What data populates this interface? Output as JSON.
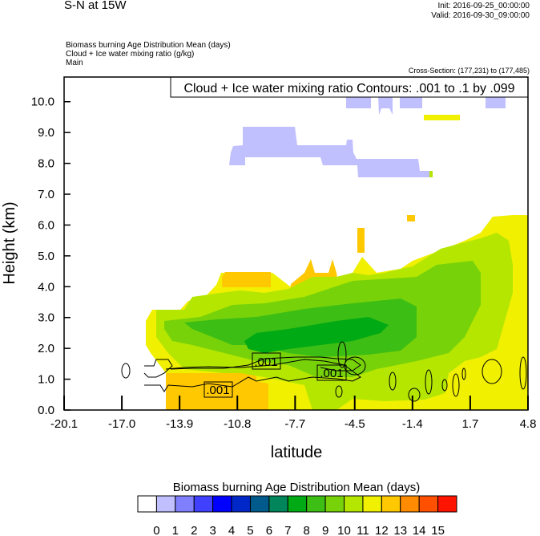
{
  "header": {
    "title": "S-N at 15W",
    "init": "Init: 2016-09-25_00:00:00",
    "valid": "Valid: 2016-09-30_09:00:00",
    "field_lines": [
      "Biomass burning Age Distribution Mean   (days)",
      "Cloud + Ice water mixing ratio   (g/kg)",
      "Main"
    ],
    "cross_section": "Cross-Section: (177,231) to (177,485)"
  },
  "chart_data": {
    "type": "heatmap",
    "contour_title": "Cloud + Ice water mixing ratio Contours: .001 to .1 by .099",
    "contour_labels": [
      ".001",
      ".001",
      ".001"
    ],
    "xlabel": "latitude",
    "ylabel": "Height (km)",
    "xlim": [
      -20.1,
      4.8
    ],
    "ylim": [
      0.0,
      10.8
    ],
    "x_ticks": [
      "-20.1",
      "-17.0",
      "-13.9",
      "-10.8",
      "-7.7",
      "-4.5",
      "-1.4",
      "1.7",
      "4.8"
    ],
    "y_ticks": [
      "0.0",
      "1.0",
      "2.0",
      "3.0",
      "4.0",
      "5.0",
      "6.0",
      "7.0",
      "8.0",
      "9.0",
      "10.0"
    ],
    "colorbar": {
      "title": "Biomass burning Age Distribution Mean  (days)",
      "labels": [
        "0",
        "1",
        "2",
        "3",
        "4",
        "5",
        "6",
        "7",
        "8",
        "9",
        "10",
        "11",
        "12",
        "13",
        "14",
        "15"
      ],
      "colors": [
        "#ffffff",
        "#c0c0ff",
        "#8080ff",
        "#4040ff",
        "#0000ff",
        "#0028c8",
        "#005a8c",
        "#00865a",
        "#00aa14",
        "#3cbe14",
        "#78d20a",
        "#b4e600",
        "#f0f000",
        "#ffc800",
        "#ff8c00",
        "#ff5000",
        "#ff1400"
      ]
    }
  }
}
